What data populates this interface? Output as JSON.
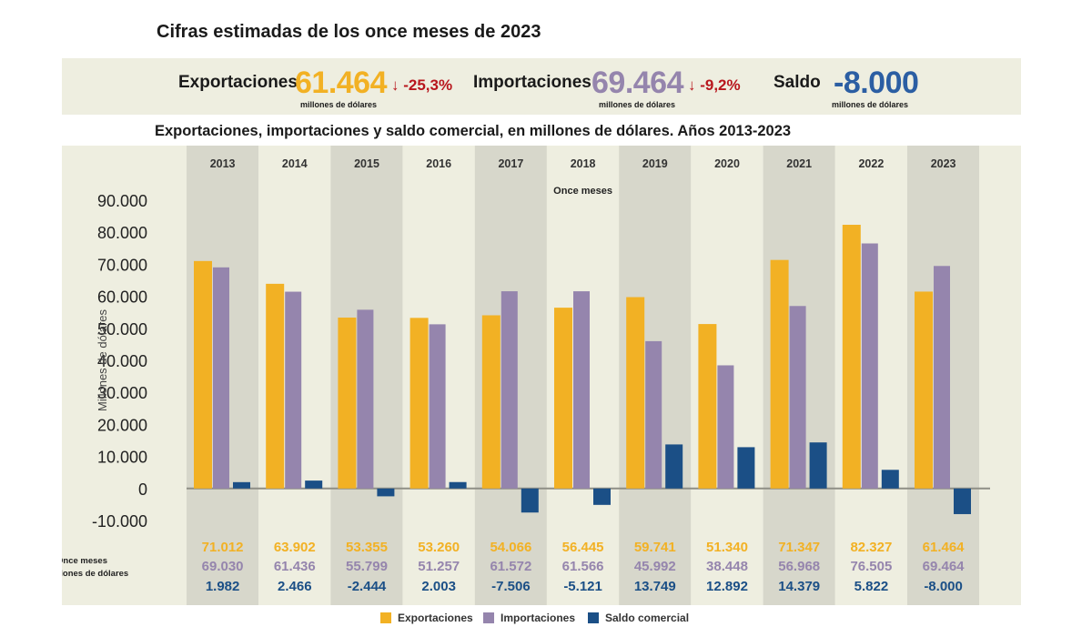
{
  "header": {
    "title": "Cifras estimadas de los once meses de 2023"
  },
  "kpis": {
    "exports": {
      "label": "Exportaciones",
      "value": "61.464",
      "unit": "millones de dólares",
      "change": "↓ -25,3%",
      "color": "#f2b124"
    },
    "imports": {
      "label": "Importaciones",
      "value": "69.464",
      "unit": "millones de dólares",
      "change": "↓ -9,2%",
      "color": "#9585ad"
    },
    "balance": {
      "label": "Saldo",
      "value": "-8.000",
      "unit": "millones de dólares",
      "color": "#2b5ea3"
    }
  },
  "chart_title": "Exportaciones, importaciones y saldo comercial, en millones de dólares. Años 2013-2023",
  "chart_data": {
    "type": "bar",
    "categories": [
      "2013",
      "2014",
      "2015",
      "2016",
      "2017",
      "2018",
      "2019",
      "2020",
      "2021",
      "2022",
      "2023"
    ],
    "subtitle": "Once meses",
    "ylabel": "Millones de dólares",
    "ylim": [
      -10000,
      90000
    ],
    "yticks": [
      90000,
      80000,
      70000,
      60000,
      50000,
      40000,
      30000,
      20000,
      10000,
      0,
      -10000
    ],
    "ytick_labels": [
      "90.000",
      "80.000",
      "70.000",
      "60.000",
      "50.000",
      "40.000",
      "30.000",
      "20.000",
      "10.000",
      "0",
      "-10.000"
    ],
    "series": [
      {
        "name": "Exportaciones",
        "color": "#f2b124",
        "values": [
          71012,
          63902,
          53355,
          53260,
          54066,
          56445,
          59741,
          51340,
          71347,
          82327,
          61464
        ],
        "labels": [
          "71.012",
          "63.902",
          "53.355",
          "53.260",
          "54.066",
          "56.445",
          "59.741",
          "51.340",
          "71.347",
          "82.327",
          "61.464"
        ]
      },
      {
        "name": "Importaciones",
        "color": "#9585ad",
        "values": [
          69030,
          61436,
          55799,
          51257,
          61572,
          61566,
          45992,
          38448,
          56968,
          76505,
          69464
        ],
        "labels": [
          "69.030",
          "61.436",
          "55.799",
          "51.257",
          "61.572",
          "61.566",
          "45.992",
          "38.448",
          "56.968",
          "76.505",
          "69.464"
        ]
      },
      {
        "name": "Saldo comercial",
        "color": "#1b4f86",
        "values": [
          1982,
          2466,
          -2444,
          2003,
          -7506,
          -5121,
          13749,
          12892,
          14379,
          5822,
          -8000
        ],
        "labels": [
          "1.982",
          "2.466",
          "-2.444",
          "2.003",
          "-7.506",
          "-5.121",
          "13.749",
          "12.892",
          "14.379",
          "5.822",
          "-8.000"
        ]
      }
    ],
    "table_row_label": [
      "Once meses",
      "en millones de dólares"
    ],
    "label_colors": [
      "#f2b124",
      "#9585ad",
      "#1b4f86"
    ],
    "background": "#eeeee0",
    "band_color": "#d7d7cb",
    "legend_position": "bottom",
    "grid": false
  }
}
